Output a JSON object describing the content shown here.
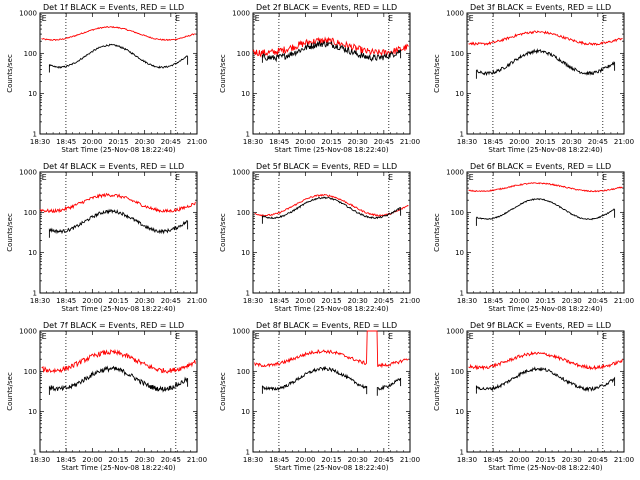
{
  "chart_data": {
    "type": "line",
    "y_scale": "log",
    "ylim": [
      1,
      1000
    ],
    "y_ticks": [
      {
        "value": 1,
        "label": "1"
      },
      {
        "value": 10,
        "label": "10"
      },
      {
        "value": 100,
        "label": "100"
      },
      {
        "value": 1000,
        "label": "1000"
      }
    ],
    "xlim": [
      0.5,
      2.5
    ],
    "x_ticks": [
      "18:30",
      "18:45",
      "20:00",
      "20:15",
      "20:30",
      "20:45",
      "21:00"
    ],
    "xlabel": "Start Time (25-Nov-08 18:22:40)",
    "ylabel": "Counts/sec",
    "grid": false,
    "dotted_vlines": [
      0.83,
      2.23
    ],
    "marker_labels": [
      {
        "text": "E",
        "x": 0.52
      },
      {
        "text": "E",
        "x": 2.22
      }
    ],
    "series_legend": {
      "Events": "#000000",
      "LLD": "#ff0000"
    },
    "panels": [
      {
        "title": "Det 1f BLACK = Events, RED = LLD",
        "lld": {
          "start": 0.52,
          "end": 2.48,
          "base": 310,
          "amp": 0.32,
          "noise": 0.015,
          "cycles": 1.35,
          "phase": 0.65
        },
        "events": {
          "start": 0.62,
          "end": 2.38,
          "base": 85,
          "amp": 0.55,
          "noise": 0.02,
          "cycles": 1.35,
          "phase": 0.65
        }
      },
      {
        "title": "Det 2f BLACK = Events, RED = LLD",
        "lld": {
          "start": 0.5,
          "end": 2.48,
          "base": 145,
          "amp": 0.3,
          "noise": 0.09,
          "cycles": 1.35,
          "phase": 0.65
        },
        "events": {
          "start": 0.62,
          "end": 2.38,
          "base": 115,
          "amp": 0.35,
          "noise": 0.08,
          "cycles": 1.35,
          "phase": 0.65
        }
      },
      {
        "title": "Det 3f BLACK = Events, RED = LLD",
        "lld": {
          "start": 0.52,
          "end": 2.48,
          "base": 240,
          "amp": 0.3,
          "noise": 0.03,
          "cycles": 1.35,
          "phase": 0.65
        },
        "events": {
          "start": 0.62,
          "end": 2.38,
          "base": 60,
          "amp": 0.55,
          "noise": 0.04,
          "cycles": 1.35,
          "phase": 0.65
        }
      },
      {
        "title": "Det 4f BLACK = Events, RED = LLD",
        "lld": {
          "start": 0.5,
          "end": 2.48,
          "base": 170,
          "amp": 0.4,
          "noise": 0.04,
          "cycles": 1.35,
          "phase": 0.65
        },
        "events": {
          "start": 0.62,
          "end": 2.38,
          "base": 60,
          "amp": 0.5,
          "noise": 0.04,
          "cycles": 1.35,
          "phase": 0.65
        }
      },
      {
        "title": "Det 5f BLACK = Events, RED = LLD",
        "lld": {
          "start": 0.52,
          "end": 2.48,
          "base": 150,
          "amp": 0.5,
          "noise": 0.02,
          "cycles": 1.35,
          "phase": 0.65
        },
        "events": {
          "start": 0.62,
          "end": 2.38,
          "base": 130,
          "amp": 0.5,
          "noise": 0.02,
          "cycles": 1.35,
          "phase": 0.65
        }
      },
      {
        "title": "Det 6f BLACK = Events, RED = LLD",
        "lld": {
          "start": 0.52,
          "end": 2.48,
          "base": 420,
          "amp": 0.2,
          "noise": 0.015,
          "cycles": 1.35,
          "phase": 0.65
        },
        "events": {
          "start": 0.62,
          "end": 2.38,
          "base": 120,
          "amp": 0.5,
          "noise": 0.015,
          "cycles": 1.35,
          "phase": 0.65
        }
      },
      {
        "title": "Det 7f BLACK = Events, RED = LLD",
        "lld": {
          "start": 0.52,
          "end": 2.48,
          "base": 175,
          "amp": 0.45,
          "noise": 0.06,
          "cycles": 1.35,
          "phase": 0.65
        },
        "events": {
          "start": 0.62,
          "end": 2.38,
          "base": 65,
          "amp": 0.5,
          "noise": 0.06,
          "cycles": 1.35,
          "phase": 0.65
        }
      },
      {
        "title": "Det 8f BLACK = Events, RED = LLD",
        "lld": {
          "start": 0.52,
          "end": 2.48,
          "base": 210,
          "amp": 0.35,
          "noise": 0.04,
          "cycles": 1.35,
          "phase": 0.65,
          "spike": [
            1.95,
            2.08,
            1000
          ]
        },
        "events": {
          "start": 0.62,
          "end": 2.38,
          "base": 65,
          "amp": 0.5,
          "noise": 0.04,
          "cycles": 1.35,
          "phase": 0.65,
          "gap": [
            1.95,
            2.08
          ]
        }
      },
      {
        "title": "Det 9f BLACK = Events, RED = LLD",
        "lld": {
          "start": 0.52,
          "end": 2.48,
          "base": 185,
          "amp": 0.35,
          "noise": 0.04,
          "cycles": 1.35,
          "phase": 0.65
        },
        "events": {
          "start": 0.62,
          "end": 2.38,
          "base": 65,
          "amp": 0.5,
          "noise": 0.04,
          "cycles": 1.35,
          "phase": 0.65
        }
      }
    ]
  }
}
